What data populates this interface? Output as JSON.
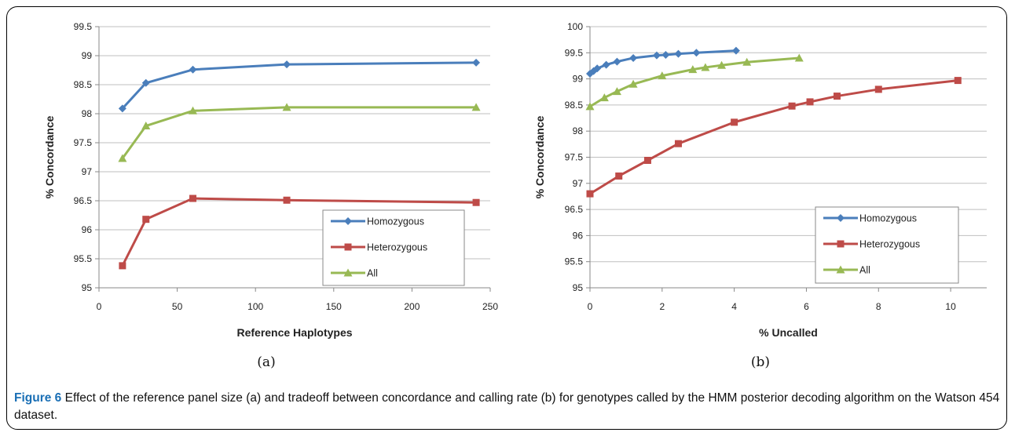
{
  "caption": {
    "label": "Figure 6",
    "text": " Effect of the reference panel size (a) and tradeoff between concordance and calling rate (b) for genotypes called by the HMM posterior decoding algorithm on the Watson 454 dataset."
  },
  "colors": {
    "homozygous": "#4a7ebb",
    "heterozygous": "#be4b48",
    "all": "#98b954"
  },
  "chart_data": [
    {
      "type": "line",
      "panel_label": "(a)",
      "xlabel": "Reference Haplotypes",
      "ylabel": "% Concordance",
      "xlim": [
        0,
        250
      ],
      "ylim": [
        95,
        99.5
      ],
      "xticks": [
        0,
        50,
        100,
        150,
        200,
        250
      ],
      "yticks": [
        95,
        95.5,
        96,
        96.5,
        97,
        97.5,
        98,
        98.5,
        99,
        99.5
      ],
      "grid": true,
      "legend_position": "bottom-right",
      "series": [
        {
          "name": "Homozygous",
          "marker": "diamond",
          "x": [
            15,
            30,
            60,
            120,
            241
          ],
          "y": [
            98.09,
            98.53,
            98.76,
            98.85,
            98.88
          ]
        },
        {
          "name": "Heterozygous",
          "marker": "square",
          "x": [
            15,
            30,
            60,
            120,
            241
          ],
          "y": [
            95.38,
            96.18,
            96.54,
            96.51,
            96.47
          ]
        },
        {
          "name": "All",
          "marker": "triangle",
          "x": [
            15,
            30,
            60,
            120,
            241
          ],
          "y": [
            97.23,
            97.79,
            98.05,
            98.11,
            98.11
          ]
        }
      ]
    },
    {
      "type": "line",
      "panel_label": "(b)",
      "xlabel": "% Uncalled",
      "ylabel": "% Concordance",
      "xlim": [
        0,
        11
      ],
      "ylim": [
        95,
        100
      ],
      "xticks": [
        0,
        2,
        4,
        6,
        8,
        10
      ],
      "yticks": [
        95,
        95.5,
        96,
        96.5,
        97,
        97.5,
        98,
        98.5,
        99,
        99.5,
        100
      ],
      "grid": true,
      "legend_position": "bottom-right",
      "series": [
        {
          "name": "Homozygous",
          "marker": "diamond",
          "x": [
            0,
            0.1,
            0.2,
            0.45,
            0.75,
            1.2,
            1.85,
            2.1,
            2.45,
            2.95,
            4.05
          ],
          "y": [
            99.1,
            99.15,
            99.2,
            99.27,
            99.33,
            99.4,
            99.45,
            99.46,
            99.48,
            99.5,
            99.54
          ]
        },
        {
          "name": "Heterozygous",
          "marker": "square",
          "x": [
            0,
            0.8,
            1.6,
            2.45,
            4.0,
            5.6,
            6.1,
            6.85,
            8.0,
            10.2
          ],
          "y": [
            96.8,
            97.14,
            97.44,
            97.76,
            98.17,
            98.48,
            98.56,
            98.67,
            98.8,
            98.97
          ]
        },
        {
          "name": "All",
          "marker": "triangle",
          "x": [
            0,
            0.4,
            0.75,
            1.2,
            2.0,
            2.85,
            3.2,
            3.65,
            4.35,
            5.8
          ],
          "y": [
            98.47,
            98.64,
            98.76,
            98.9,
            99.06,
            99.18,
            99.22,
            99.26,
            99.32,
            99.4
          ]
        }
      ]
    }
  ]
}
